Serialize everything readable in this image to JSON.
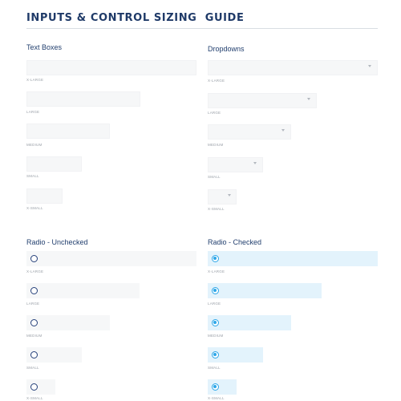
{
  "page": {
    "title": "INPUTS & CONTROL SIZING  GUIDE"
  },
  "sections": {
    "text_boxes": {
      "heading": "Text Boxes",
      "sizes": [
        "X-LARGE",
        "LARGE",
        "MEDIUM",
        "SMALL",
        "X-SMALL"
      ]
    },
    "dropdowns": {
      "heading": "Dropdowns",
      "sizes": [
        "X-LARGE",
        "LARGE",
        "MEDIUM",
        "SMALL",
        "X-SMALL"
      ],
      "chevron_icon": "chevron-down-icon"
    },
    "radio_unchecked": {
      "heading": "Radio - Unchecked",
      "sizes": [
        "X-LARGE",
        "LARGE",
        "MEDIUM",
        "SMALL",
        "X-SMALL"
      ],
      "icon": "radio-unchecked-icon"
    },
    "radio_checked": {
      "heading": "Radio - Checked",
      "sizes": [
        "X-LARGE",
        "LARGE",
        "MEDIUM",
        "SMALL",
        "X-SMALL"
      ],
      "icon": "radio-checked-icon"
    }
  },
  "colors": {
    "title": "#1f3a68",
    "field_bg": "#f6f7f8",
    "checked_bg": "#e3f3fc",
    "radio_checked": "#2ea7e8",
    "radio_unchecked": "#25407a"
  }
}
